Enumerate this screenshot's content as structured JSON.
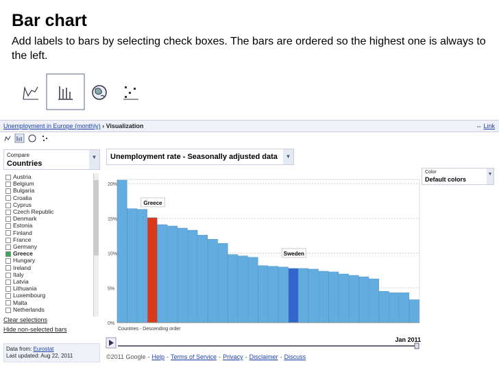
{
  "header": {
    "title": "Bar chart",
    "description": "Add labels to bars by selecting check boxes. The bars are ordered so the highest one is always to the left."
  },
  "breadcrumb": [
    "Unemployment in Europe (monthly)",
    "› Visualization"
  ],
  "link": "Link",
  "compare": {
    "label": "Compare",
    "value": "Countries"
  },
  "countries": [
    {
      "name": "Austria",
      "checked": false
    },
    {
      "name": "Belgium",
      "checked": false
    },
    {
      "name": "Bulgaria",
      "checked": false
    },
    {
      "name": "Croatia",
      "checked": false
    },
    {
      "name": "Cyprus",
      "checked": false
    },
    {
      "name": "Czech Republic",
      "checked": false
    },
    {
      "name": "Denmark",
      "checked": false
    },
    {
      "name": "Estonia",
      "checked": false
    },
    {
      "name": "Finland",
      "checked": false
    },
    {
      "name": "France",
      "checked": false
    },
    {
      "name": "Germany",
      "checked": false
    },
    {
      "name": "Greece",
      "checked": true
    },
    {
      "name": "Hungary",
      "checked": false
    },
    {
      "name": "Ireland",
      "checked": false
    },
    {
      "name": "Italy",
      "checked": false
    },
    {
      "name": "Latvia",
      "checked": false
    },
    {
      "name": "Lithuania",
      "checked": false
    },
    {
      "name": "Luxembourg",
      "checked": false
    },
    {
      "name": "Malta",
      "checked": false
    },
    {
      "name": "Netherlands",
      "checked": false
    }
  ],
  "clear_selections": "Clear selections",
  "hide_bars": "Hide non-selected bars",
  "source": {
    "label": "Data from:",
    "name": "Eurostat",
    "updated": "Last updated: Aug 22, 2011"
  },
  "metric": "Unemployment rate - Seasonally adjusted data",
  "color_control": {
    "label": "Color",
    "value": "Default colors"
  },
  "time": "Jan 2011",
  "footer": {
    "copyright": "©2011 Google",
    "separator": "-",
    "links": [
      "Help",
      "Terms of Service",
      "Privacy",
      "Disclaimer",
      "Discuss"
    ]
  },
  "chart_data": {
    "type": "bar",
    "x_label": "Countries - Descending order",
    "categories": [
      null,
      null,
      null,
      "Greece",
      null,
      null,
      null,
      null,
      null,
      null,
      null,
      null,
      null,
      null,
      null,
      null,
      null,
      "Sweden",
      null,
      null,
      null,
      null,
      null,
      null,
      null,
      null,
      null,
      null,
      null,
      null
    ],
    "values": [
      20.5,
      16.4,
      16.3,
      15.1,
      14.1,
      13.9,
      13.6,
      13.3,
      12.6,
      12.0,
      11.4,
      9.8,
      9.6,
      9.4,
      8.2,
      8.1,
      8.0,
      7.8,
      7.8,
      7.7,
      7.4,
      7.3,
      7.0,
      6.8,
      6.6,
      6.3,
      4.5,
      4.3,
      4.3,
      3.3
    ],
    "colors": [
      "#62acdf",
      "#62acdf",
      "#62acdf",
      "#d93a17",
      "#62acdf",
      "#62acdf",
      "#62acdf",
      "#62acdf",
      "#62acdf",
      "#62acdf",
      "#62acdf",
      "#62acdf",
      "#62acdf",
      "#62acdf",
      "#62acdf",
      "#62acdf",
      "#62acdf",
      "#3366cc",
      "#62acdf",
      "#62acdf",
      "#62acdf",
      "#62acdf",
      "#62acdf",
      "#62acdf",
      "#62acdf",
      "#62acdf",
      "#62acdf",
      "#62acdf",
      "#62acdf",
      "#62acdf"
    ],
    "ylim": [
      0,
      20.6
    ],
    "yticks": [
      {
        "value": 0,
        "label": "0%"
      },
      {
        "value": 5,
        "label": "5%"
      },
      {
        "value": 10,
        "label": "10%"
      },
      {
        "value": 15,
        "label": "15%"
      },
      {
        "value": 20,
        "label": "20%"
      }
    ],
    "grid": true
  }
}
